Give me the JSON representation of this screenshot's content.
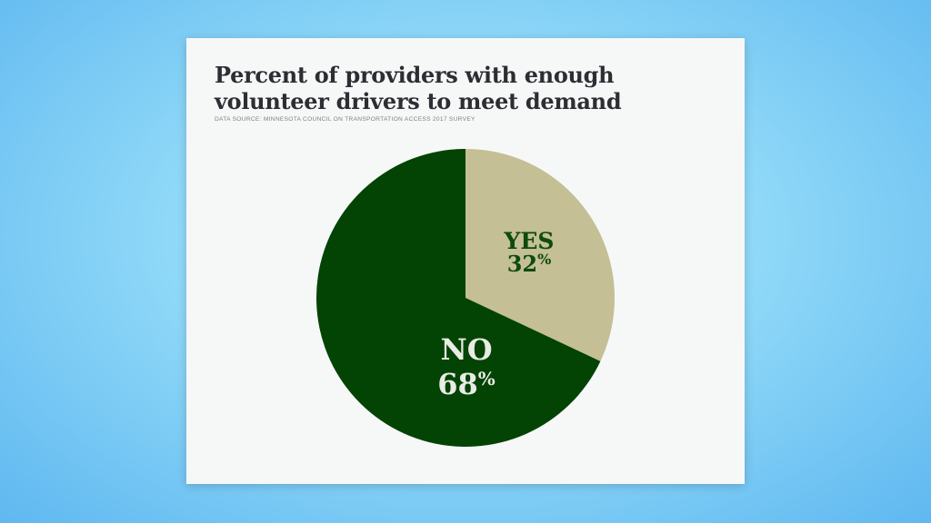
{
  "chart_data": {
    "type": "pie",
    "title": "Percent of providers with enough volunteer drivers to meet demand",
    "subtitle": "DATA SOURCE: MINNESOTA COUNCIL ON TRANSPORTATION ACCESS 2017 SURVEY",
    "slices": [
      {
        "label": "YES",
        "value": 32,
        "value_text": "32",
        "unit": "%",
        "color": "#c4bf95",
        "label_color": "#0d4a0d"
      },
      {
        "label": "NO",
        "value": 68,
        "value_text": "68",
        "unit": "%",
        "color": "#034303",
        "label_color": "#e8ece4"
      }
    ],
    "start": "12 o'clock",
    "direction": "clockwise"
  }
}
